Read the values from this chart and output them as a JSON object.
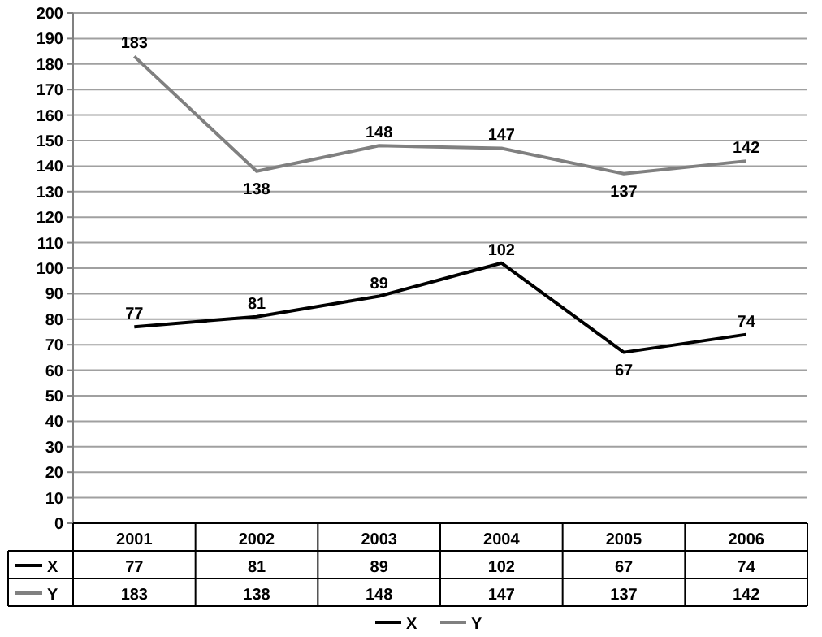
{
  "chart_data": {
    "type": "line",
    "categories": [
      "2001",
      "2002",
      "2003",
      "2004",
      "2005",
      "2006"
    ],
    "series": [
      {
        "name": "X",
        "color": "#000000",
        "values": [
          77,
          81,
          89,
          102,
          67,
          74
        ]
      },
      {
        "name": "Y",
        "color": "#808080",
        "values": [
          183,
          138,
          148,
          147,
          137,
          142
        ]
      }
    ],
    "ylim": [
      0,
      200
    ],
    "yticks": [
      0,
      10,
      20,
      30,
      40,
      50,
      60,
      70,
      80,
      90,
      100,
      110,
      120,
      130,
      140,
      150,
      160,
      170,
      180,
      190,
      200
    ],
    "grid": "y",
    "data_labels": true,
    "legend": "bottom",
    "marker": "none",
    "line_style": "solid",
    "annotations": [
      {
        "text": "77",
        "x": "2001",
        "y": 77
      },
      {
        "text": "81",
        "x": "2002",
        "y": 81
      },
      {
        "text": "89",
        "x": "2003",
        "y": 89
      },
      {
        "text": "102",
        "x": "2004",
        "y": 102
      },
      {
        "text": "67",
        "x": "2005",
        "y": 67
      },
      {
        "text": "74",
        "x": "2006",
        "y": 74
      },
      {
        "text": "183",
        "x": "2001",
        "y": 183
      },
      {
        "text": "138",
        "x": "2002",
        "y": 138
      },
      {
        "text": "148",
        "x": "2003",
        "y": 148
      },
      {
        "text": "147",
        "x": "2004",
        "y": 147
      },
      {
        "text": "137",
        "x": "2005",
        "y": 137
      },
      {
        "text": "142",
        "x": "2006",
        "y": 142
      }
    ]
  }
}
